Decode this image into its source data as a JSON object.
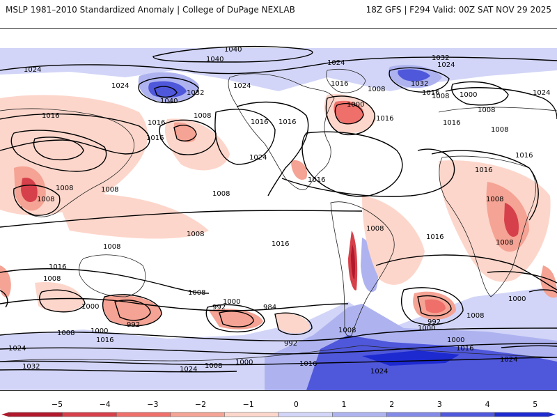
{
  "header": {
    "title": "MSLP 1981–2010 Standardized Anomaly | College of DuPage NEXLAB",
    "run_info": "18Z GFS | F294 Valid: 00Z SAT NOV 29 2025"
  },
  "contour_labels": {
    "c1040_top": "1040",
    "c1040_nw": "1040",
    "c1040_jet": "1040",
    "c1032_pac": "1032",
    "c1032_ne": "1032",
    "c1032_ne2": "1032",
    "c1024_w": "1024",
    "c1024_nw": "1024",
    "c1024_np": "1024",
    "c1024_ca": "1024",
    "c1024_mid": "1024",
    "c1024_russ": "1024",
    "c1024_e": "1024",
    "c1016_asia": "1016",
    "c1016_pac1": "1016",
    "c1016_pac2": "1016",
    "c1016_can": "1016",
    "c1016_us": "1016",
    "c1016_cent": "1016",
    "c1016_gulf": "1016",
    "c1016_atl": "1016",
    "c1016_eu": "1016",
    "c1016_afr": "1016",
    "c1016_sa": "1016",
    "c1016_sacent": "1016",
    "c1016_sio": "1016",
    "c1016_spac": "1016",
    "c1016_sw": "1016",
    "c1008_asia": "1008",
    "c1008_pac": "1008",
    "c1008_pac2": "1008",
    "c1008_china": "1008",
    "c1008_cpac": "1008",
    "c1008_hawai": "1008",
    "c1008_npac": "1008",
    "c1008_atl": "1008",
    "c1008_eu": "1008",
    "c1008_asia2": "1008",
    "c1008_asia3": "1008",
    "c1008_af": "1008",
    "c1008_io": "1008",
    "c1008_sp": "1008",
    "c1008_sa": "1008",
    "c1008_aus": "1008",
    "c1008_sw": "1008",
    "c1008_so1": "1008",
    "c1008_so2": "1008",
    "c1000_a": "1000",
    "c1000_b": "1000",
    "c1000_c": "1000",
    "c1000_d": "1000",
    "c1000_e": "1000",
    "c1000_f": "1000",
    "c1000_g": "1000",
    "c1000_h": "1000",
    "c992_a": "992",
    "c992_b": "992",
    "c992_c": "992",
    "c992_d": "992",
    "c984": "984",
    "c1032_s": "1032",
    "c1024_s1": "1024",
    "c1024_s2": "1024",
    "c1024_s3": "1024",
    "c1024_s4": "1024",
    "c1016_s1": "1016",
    "c1016_s2": "1016",
    "c1016_s3": "1016",
    "c1008_s1": "1008",
    "c1000_s1": "1000"
  },
  "colorbar": {
    "ticks": [
      "−5",
      "−4",
      "−3",
      "−2",
      "−1",
      "0",
      "1",
      "2",
      "3",
      "4",
      "5"
    ],
    "colors": [
      "#b2182b",
      "#d6404a",
      "#ef6f6a",
      "#f4a394",
      "#fdd6cb",
      "#ffffff",
      "#d2d5f7",
      "#aeb3f0",
      "#8289e6",
      "#4f57db",
      "#1d2ad0"
    ]
  }
}
